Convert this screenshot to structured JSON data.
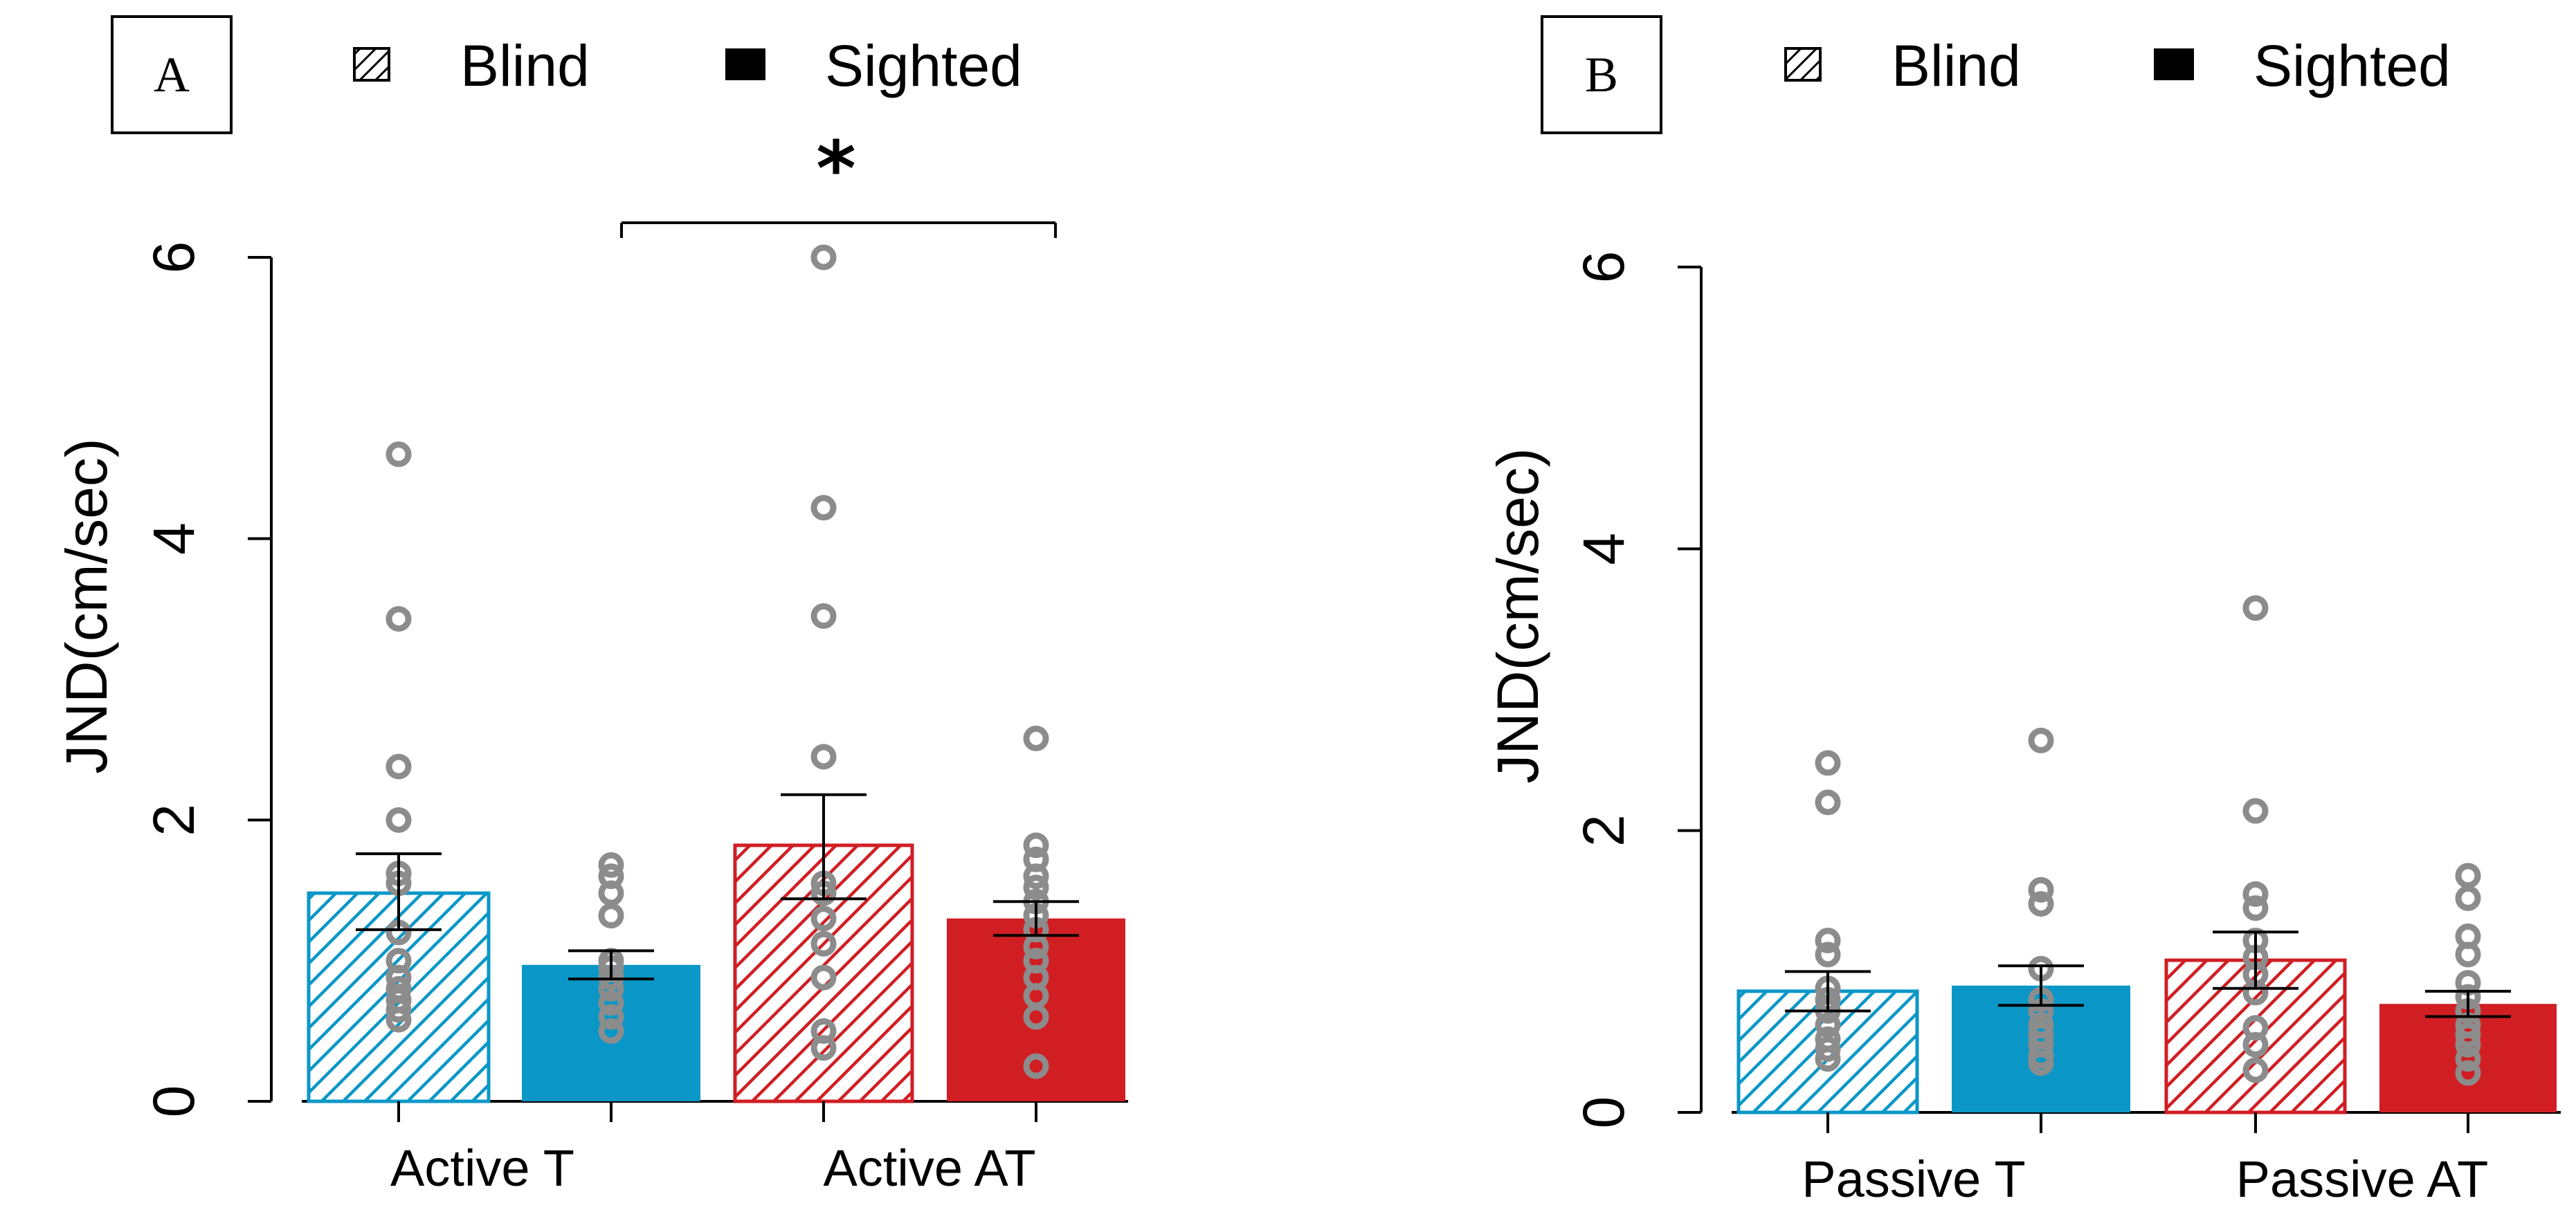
{
  "colors": {
    "blue": "#0a97c7",
    "red": "#d01e23",
    "point": "#8c8c8c",
    "black": "#000000"
  },
  "legend": {
    "blind_label": "Blind",
    "sighted_label": "Sighted"
  },
  "chart_data": [
    {
      "type": "bar",
      "panel_label": "A",
      "ylabel": "JND(cm/sec)",
      "ylim": [
        0,
        6
      ],
      "yticks": [
        "0",
        "2",
        "4",
        "6"
      ],
      "categories": [
        "Active T",
        "Active AT"
      ],
      "significance": "*",
      "series": [
        {
          "name": "Blind",
          "hatched": true,
          "colors": [
            "blue",
            "red"
          ],
          "values": [
            1.48,
            1.82
          ],
          "errors": [
            [
              1.22,
              1.76
            ],
            [
              1.44,
              2.18
            ]
          ]
        },
        {
          "name": "Sighted",
          "hatched": false,
          "colors": [
            "blue",
            "red"
          ],
          "values": [
            0.97,
            1.3
          ],
          "errors": [
            [
              0.87,
              1.07
            ],
            [
              1.18,
              1.42
            ]
          ]
        }
      ],
      "points": [
        [
          4.6,
          3.43,
          2.38,
          2.0,
          1.62,
          1.55,
          1.2,
          1.0,
          0.88,
          0.8,
          0.72,
          0.65,
          0.58
        ],
        [
          1.68,
          1.6,
          1.48,
          1.32,
          1.0,
          0.95,
          0.88,
          0.8,
          0.7,
          0.6,
          0.5
        ],
        [
          6.0,
          4.22,
          3.45,
          2.45,
          1.55,
          1.48,
          1.3,
          1.12,
          0.88,
          0.5,
          0.38
        ],
        [
          2.58,
          1.82,
          1.72,
          1.6,
          1.52,
          1.42,
          1.32,
          1.22,
          1.1,
          1.0,
          0.88,
          0.75,
          0.6,
          0.25
        ]
      ]
    },
    {
      "type": "bar",
      "panel_label": "B",
      "ylabel": "JND(cm/sec)",
      "ylim": [
        0,
        6
      ],
      "yticks": [
        "0",
        "2",
        "4",
        "6"
      ],
      "categories": [
        "Passive T",
        "Passive AT"
      ],
      "series": [
        {
          "name": "Blind",
          "hatched": true,
          "colors": [
            "blue",
            "red"
          ],
          "values": [
            0.86,
            1.08
          ],
          "errors": [
            [
              0.72,
              1.0
            ],
            [
              0.88,
              1.28
            ]
          ]
        },
        {
          "name": "Sighted",
          "hatched": false,
          "colors": [
            "blue",
            "red"
          ],
          "values": [
            0.9,
            0.77
          ],
          "errors": [
            [
              0.76,
              1.04
            ],
            [
              0.68,
              0.86
            ]
          ]
        }
      ],
      "points": [
        [
          2.48,
          2.2,
          1.22,
          1.12,
          0.88,
          0.8,
          0.72,
          0.62,
          0.52,
          0.45,
          0.38
        ],
        [
          2.64,
          1.58,
          1.48,
          1.02,
          0.8,
          0.72,
          0.62,
          0.55,
          0.48,
          0.4,
          0.35
        ],
        [
          3.58,
          2.14,
          1.55,
          1.45,
          1.22,
          1.1,
          0.98,
          0.85,
          0.6,
          0.48,
          0.3
        ],
        [
          1.68,
          1.52,
          1.25,
          1.12,
          0.92,
          0.82,
          0.72,
          0.62,
          0.55,
          0.48,
          0.38,
          0.28
        ]
      ]
    }
  ]
}
